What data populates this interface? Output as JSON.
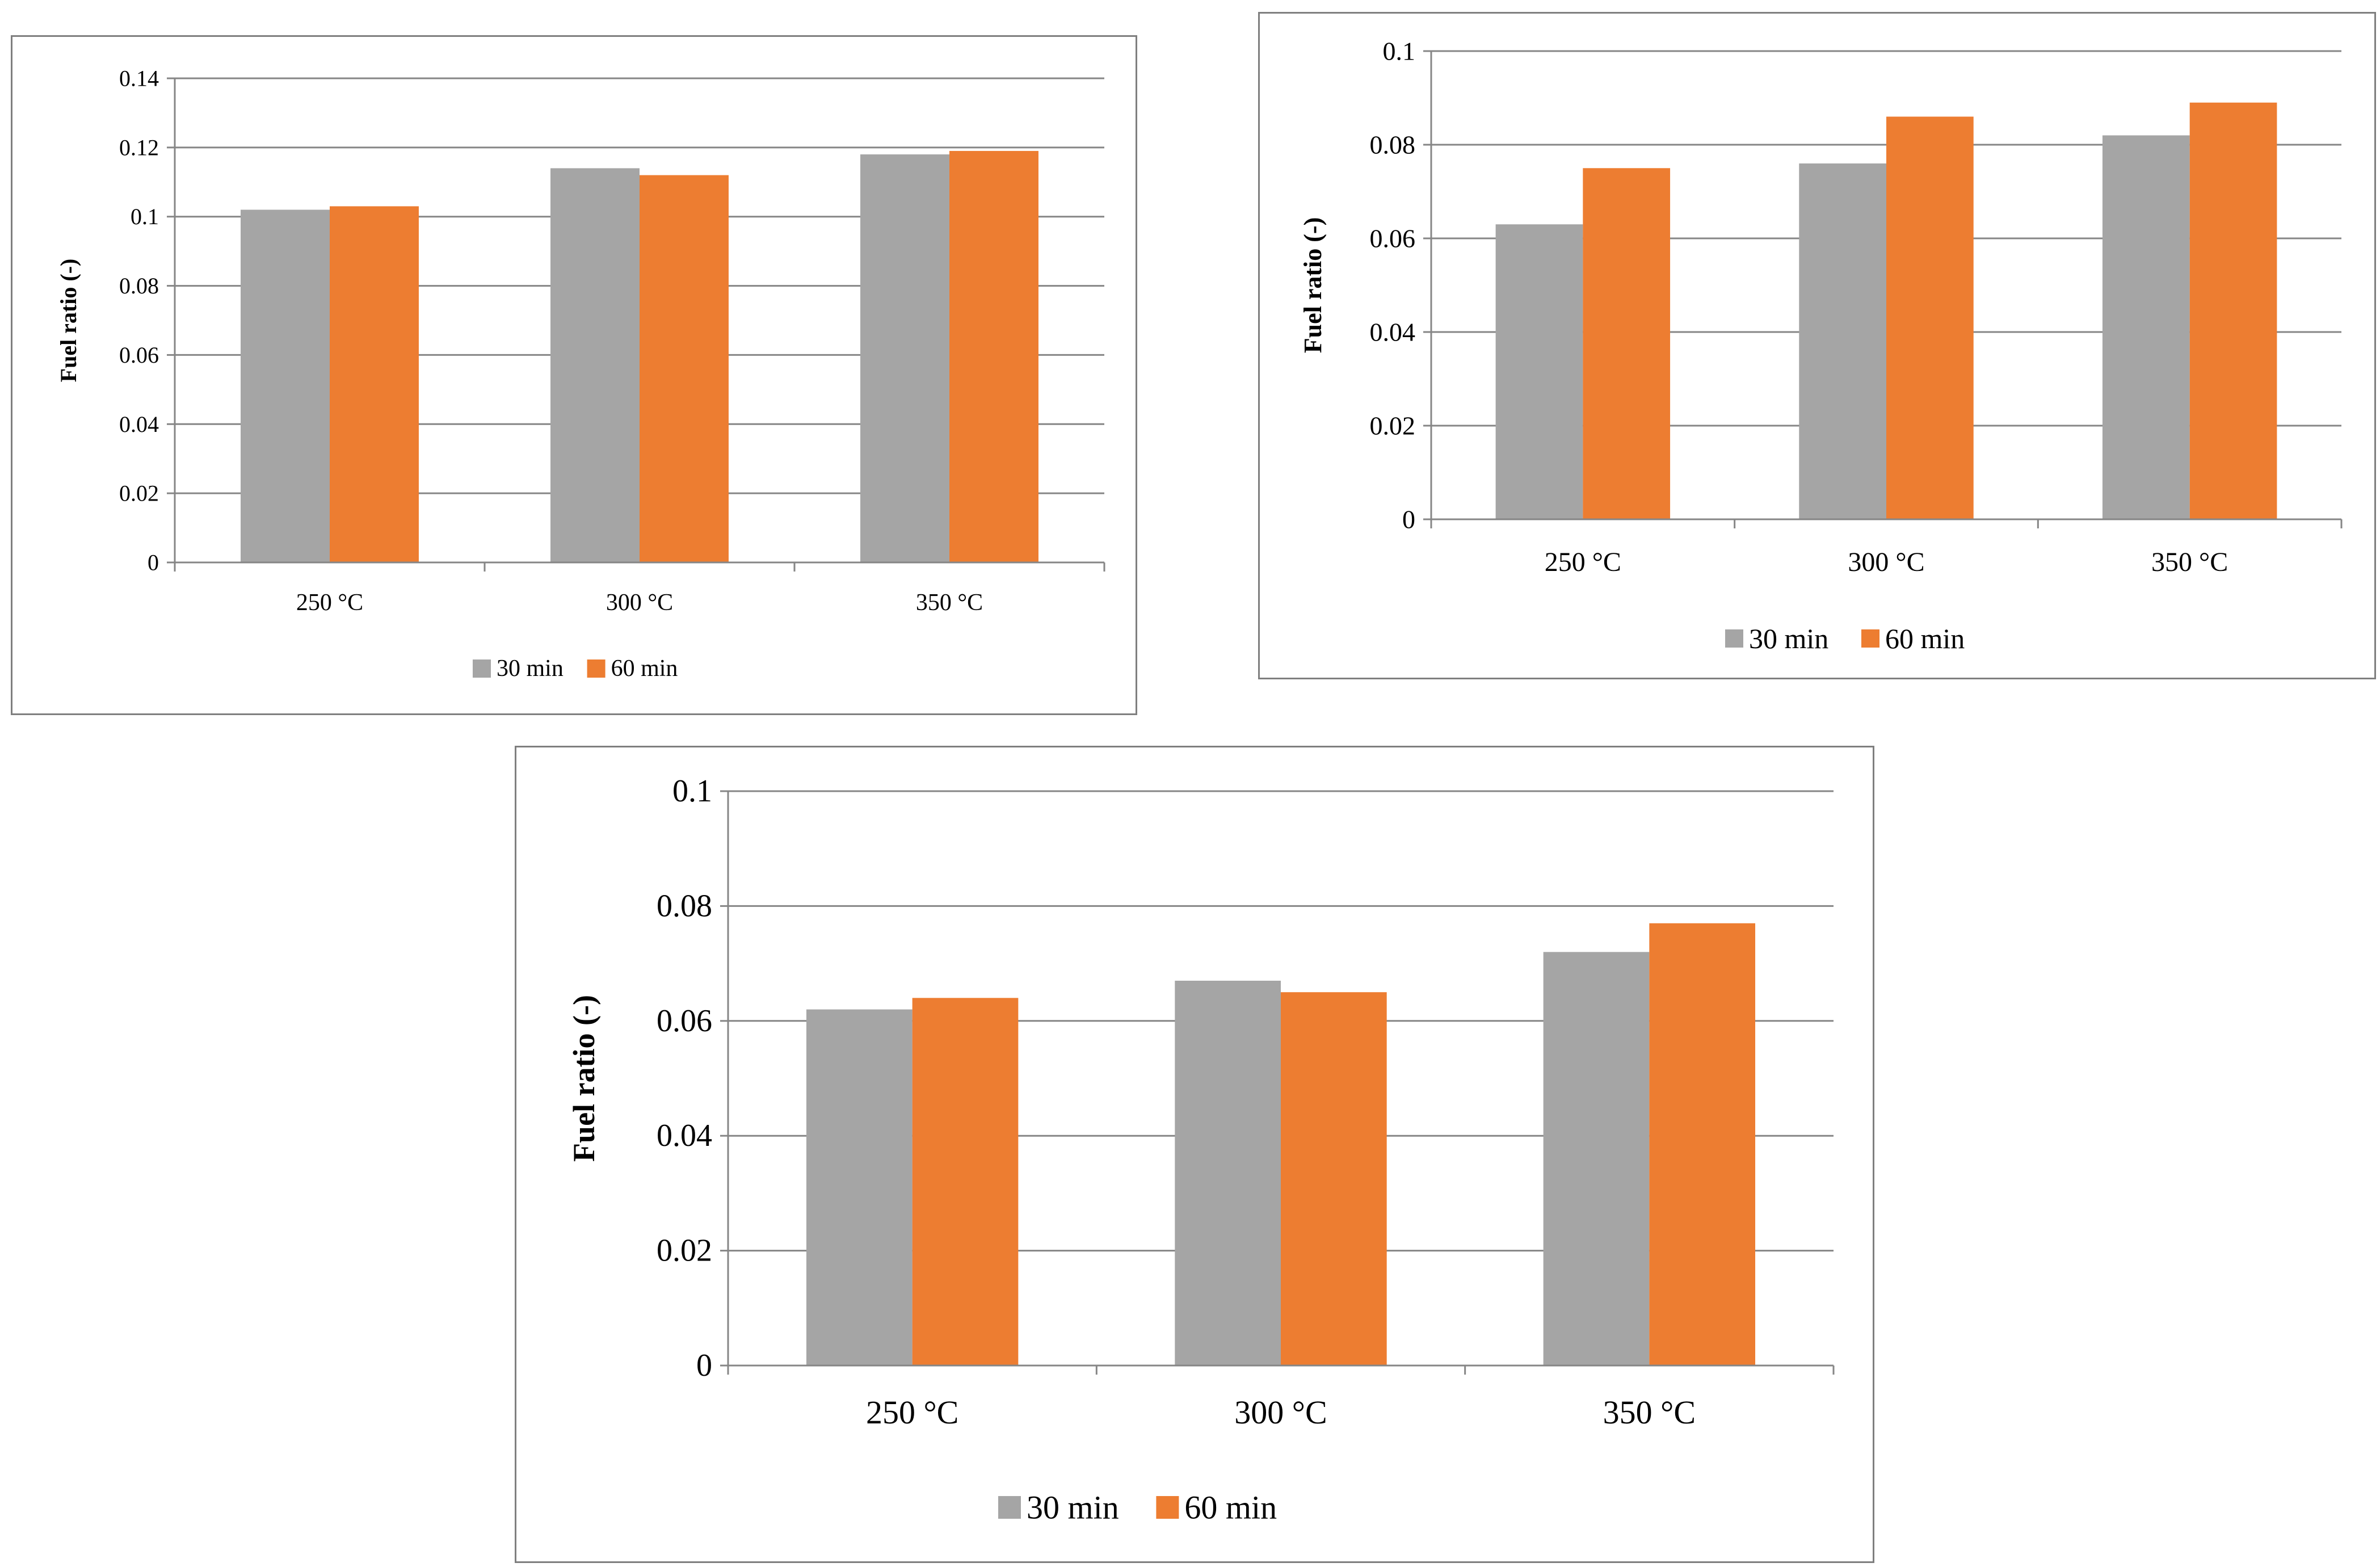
{
  "chart_data": [
    {
      "type": "bar",
      "categories": [
        "250 °C",
        "300 °C",
        "350 °C"
      ],
      "series": [
        {
          "name": "30 min",
          "values": [
            0.102,
            0.114,
            0.118
          ]
        },
        {
          "name": "60 min",
          "values": [
            0.103,
            0.112,
            0.119
          ]
        }
      ],
      "ylabel": "Fuel ratio (-)",
      "xlabel": "",
      "ylim": [
        0,
        0.14
      ],
      "yticks": [
        "0",
        "0.02",
        "0.04",
        "0.06",
        "0.08",
        "0.1",
        "0.12",
        "0.14"
      ],
      "grid": true,
      "legend": "bottom"
    },
    {
      "type": "bar",
      "categories": [
        "250 °C",
        "300 °C",
        "350 °C"
      ],
      "series": [
        {
          "name": "30 min",
          "values": [
            0.063,
            0.076,
            0.082
          ]
        },
        {
          "name": "60 min",
          "values": [
            0.075,
            0.086,
            0.089
          ]
        }
      ],
      "ylabel": "Fuel ratio (-)",
      "xlabel": "",
      "ylim": [
        0,
        0.1
      ],
      "yticks": [
        "0",
        "0.02",
        "0.04",
        "0.06",
        "0.08",
        "0.1"
      ],
      "grid": true,
      "legend": "bottom"
    },
    {
      "type": "bar",
      "categories": [
        "250 °C",
        "300 °C",
        "350 °C"
      ],
      "series": [
        {
          "name": "30 min",
          "values": [
            0.062,
            0.067,
            0.072
          ]
        },
        {
          "name": "60 min",
          "values": [
            0.064,
            0.065,
            0.077
          ]
        }
      ],
      "ylabel": "Fuel ratio (-)",
      "xlabel": "",
      "ylim": [
        0,
        0.1
      ],
      "yticks": [
        "0",
        "0.02",
        "0.04",
        "0.06",
        "0.08",
        "0.1"
      ],
      "grid": true,
      "legend": "bottom"
    }
  ],
  "colors": {
    "series_30": "#a5a5a5",
    "series_60": "#ed7d31",
    "grid": "#868686",
    "axis": "#868686"
  }
}
